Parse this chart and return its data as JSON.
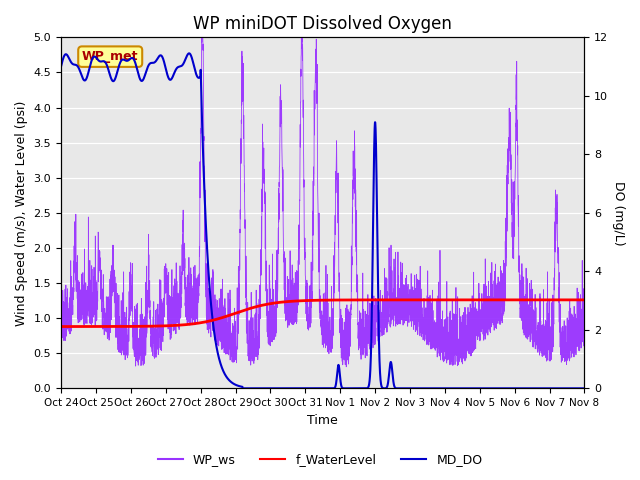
{
  "title": "WP miniDOT Dissolved Oxygen",
  "ylabel_left": "Wind Speed (m/s), Water Level (psi)",
  "ylabel_right": "DO (mg/L)",
  "xlabel": "Time",
  "ylim_left": [
    0,
    5.0
  ],
  "ylim_right": [
    0,
    12
  ],
  "yticks_left": [
    0.0,
    0.5,
    1.0,
    1.5,
    2.0,
    2.5,
    3.0,
    3.5,
    4.0,
    4.5,
    5.0
  ],
  "yticks_right": [
    0,
    2,
    4,
    6,
    8,
    10,
    12
  ],
  "plot_bg_color": "#e8e8e8",
  "wp_ws_color": "#9933ff",
  "f_wl_color": "#ff0000",
  "md_do_color": "#0000cc",
  "annotation_text": "WP_met",
  "annotation_bg": "#ffff99",
  "annotation_border": "#cc8800",
  "annotation_text_color": "#aa0000",
  "title_fontsize": 12,
  "label_fontsize": 9,
  "tick_fontsize": 8,
  "legend_fontsize": 9,
  "xtick_labels": [
    "Oct 24",
    "Oct 25",
    "Oct 26",
    "Oct 27",
    "Oct 28",
    "Oct 29",
    "Oct 30",
    "Oct 31",
    "Nov 1",
    "Nov 2",
    "Nov 3",
    "Nov 4",
    "Nov 5",
    "Nov 6",
    "Nov 7",
    "Nov 8"
  ],
  "xtick_positions": [
    0,
    1,
    2,
    3,
    4,
    5,
    6,
    7,
    8,
    9,
    10,
    11,
    12,
    13,
    14,
    15
  ]
}
